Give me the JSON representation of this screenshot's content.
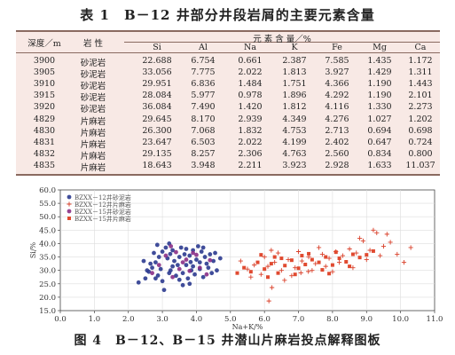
{
  "table": {
    "title": "表 1　B－12 井部分井段岩屑的主要元素含量",
    "header_depth": "深度／m",
    "header_rock": "岩 性",
    "header_group": "元 素 含 量／%",
    "elements": [
      "Si",
      "Al",
      "Na",
      "K",
      "Fe",
      "Mg",
      "Ca"
    ],
    "rows": [
      {
        "depth": "3900",
        "rock": "砂泥岩",
        "values": [
          "22.688",
          "6.754",
          "0.661",
          "2.387",
          "7.585",
          "1.435",
          "1.172"
        ]
      },
      {
        "depth": "3905",
        "rock": "砂泥岩",
        "values": [
          "33.056",
          "7.775",
          "2.022",
          "1.813",
          "3.927",
          "1.429",
          "1.311"
        ]
      },
      {
        "depth": "3910",
        "rock": "砂泥岩",
        "values": [
          "29.951",
          "6.836",
          "1.484",
          "1.751",
          "4.366",
          "1.190",
          "1.443"
        ]
      },
      {
        "depth": "3915",
        "rock": "砂泥岩",
        "values": [
          "28.084",
          "5.977",
          "0.978",
          "1.896",
          "4.292",
          "1.190",
          "2.101"
        ]
      },
      {
        "depth": "3920",
        "rock": "砂泥岩",
        "values": [
          "36.084",
          "7.490",
          "1.420",
          "1.812",
          "4.116",
          "1.330",
          "2.273"
        ]
      },
      {
        "depth": "4829",
        "rock": "片麻岩",
        "values": [
          "29.645",
          "8.170",
          "2.939",
          "4.349",
          "4.276",
          "1.027",
          "1.202"
        ]
      },
      {
        "depth": "4830",
        "rock": "片麻岩",
        "values": [
          "26.300",
          "7.068",
          "1.832",
          "4.753",
          "2.713",
          "0.694",
          "0.698"
        ]
      },
      {
        "depth": "4831",
        "rock": "片麻岩",
        "values": [
          "23.647",
          "6.503",
          "2.022",
          "4.199",
          "2.402",
          "0.647",
          "0.724"
        ]
      },
      {
        "depth": "4832",
        "rock": "片麻岩",
        "values": [
          "29.135",
          "8.257",
          "2.306",
          "4.763",
          "2.560",
          "0.834",
          "0.800"
        ]
      },
      {
        "depth": "4835",
        "rock": "片麻岩",
        "values": [
          "18.643",
          "3.948",
          "2.211",
          "3.923",
          "2.928",
          "1.633",
          "11.037"
        ]
      }
    ]
  },
  "figure_caption": "图 4　B－12、B－15 井潜山片麻岩投点解释图板",
  "colors": {
    "sandstone": "#2b3a8f",
    "gneiss": "#d9402a",
    "table_bg": "#f8e9e5"
  },
  "chart_data": {
    "type": "scatter",
    "xlabel": "Na+K/%",
    "ylabel": "Si/%",
    "xlim": [
      0.0,
      11.0
    ],
    "ylim": [
      15.0,
      60.0
    ],
    "xticks": [
      "0.0",
      "1.0",
      "2.0",
      "3.0",
      "4.0",
      "5.0",
      "6.0",
      "7.0",
      "8.0",
      "9.0",
      "10.0",
      "11.0"
    ],
    "yticks": [
      "15.0",
      "20.0",
      "25.0",
      "30.0",
      "35.0",
      "40.0",
      "45.0",
      "50.0",
      "55.0",
      "60.0"
    ],
    "legend_position": "top-left",
    "grid": true,
    "series": [
      {
        "name": "BZXX－12井砂泥岩",
        "marker": "circle",
        "color": "#2b3a8f",
        "points": [
          [
            3.05,
            22.7
          ],
          [
            3.83,
            33.1
          ],
          [
            3.24,
            30.0
          ],
          [
            2.87,
            28.1
          ],
          [
            3.23,
            36.1
          ],
          [
            2.3,
            25.5
          ],
          [
            2.5,
            27.0
          ],
          [
            2.6,
            29.5
          ],
          [
            2.7,
            31.0
          ],
          [
            2.8,
            33.0
          ],
          [
            2.9,
            35.0
          ],
          [
            3.0,
            37.0
          ],
          [
            3.1,
            38.5
          ],
          [
            3.2,
            40.0
          ],
          [
            3.3,
            31.5
          ],
          [
            3.4,
            28.0
          ],
          [
            3.5,
            26.5
          ],
          [
            3.6,
            29.0
          ],
          [
            3.7,
            32.0
          ],
          [
            3.8,
            35.5
          ],
          [
            3.9,
            37.5
          ],
          [
            4.0,
            34.0
          ],
          [
            4.1,
            30.5
          ],
          [
            4.2,
            27.5
          ],
          [
            4.3,
            32.5
          ],
          [
            4.4,
            36.0
          ],
          [
            4.5,
            33.5
          ],
          [
            4.6,
            30.0
          ],
          [
            2.75,
            36.5
          ],
          [
            3.15,
            34.5
          ],
          [
            3.45,
            32.0
          ],
          [
            3.65,
            36.0
          ],
          [
            3.95,
            28.5
          ],
          [
            4.25,
            35.0
          ],
          [
            2.65,
            32.5
          ],
          [
            3.55,
            38.5
          ],
          [
            3.85,
            30.0
          ],
          [
            4.15,
            37.0
          ],
          [
            4.45,
            29.0
          ],
          [
            2.95,
            30.5
          ],
          [
            3.35,
            33.5
          ],
          [
            3.75,
            27.0
          ],
          [
            4.05,
            39.0
          ],
          [
            2.55,
            30.0
          ],
          [
            3.5,
            35.0
          ],
          [
            4.35,
            31.0
          ],
          [
            3.0,
            26.0
          ],
          [
            3.6,
            24.5
          ],
          [
            4.7,
            34.5
          ],
          [
            2.85,
            39.5
          ],
          [
            3.7,
            38.0
          ],
          [
            4.1,
            33.0
          ],
          [
            3.3,
            37.5
          ],
          [
            3.9,
            31.5
          ],
          [
            2.45,
            33.5
          ],
          [
            4.55,
            36.5
          ],
          [
            3.2,
            29.0
          ],
          [
            3.8,
            25.0
          ],
          [
            4.2,
            38.5
          ],
          [
            2.8,
            27.0
          ]
        ]
      },
      {
        "name": "BZXX－12井片麻岩",
        "marker": "plus",
        "color": "#d9402a",
        "points": [
          [
            7.29,
            29.6
          ],
          [
            6.59,
            26.3
          ],
          [
            6.22,
            23.6
          ],
          [
            7.07,
            29.1
          ],
          [
            6.13,
            18.6
          ],
          [
            5.5,
            30.5
          ],
          [
            5.7,
            32.0
          ],
          [
            5.9,
            28.5
          ],
          [
            6.1,
            31.5
          ],
          [
            6.3,
            33.0
          ],
          [
            6.5,
            30.0
          ],
          [
            6.7,
            34.0
          ],
          [
            6.9,
            31.0
          ],
          [
            7.1,
            33.5
          ],
          [
            7.3,
            35.0
          ],
          [
            7.5,
            32.5
          ],
          [
            7.7,
            36.0
          ],
          [
            7.9,
            34.5
          ],
          [
            8.1,
            37.0
          ],
          [
            8.3,
            35.5
          ],
          [
            8.5,
            38.0
          ],
          [
            8.7,
            36.5
          ],
          [
            8.9,
            41.0
          ],
          [
            9.1,
            37.5
          ],
          [
            9.3,
            44.0
          ],
          [
            9.5,
            39.0
          ],
          [
            9.7,
            40.5
          ],
          [
            9.9,
            36.0
          ],
          [
            10.1,
            33.0
          ],
          [
            10.3,
            38.5
          ],
          [
            6.0,
            35.0
          ],
          [
            6.4,
            36.5
          ],
          [
            7.0,
            37.0
          ],
          [
            7.4,
            30.0
          ],
          [
            7.8,
            31.5
          ],
          [
            8.2,
            33.0
          ],
          [
            8.6,
            31.0
          ],
          [
            9.0,
            34.0
          ],
          [
            9.4,
            35.5
          ],
          [
            5.3,
            33.5
          ],
          [
            5.6,
            27.5
          ],
          [
            6.8,
            28.0
          ],
          [
            8.0,
            29.5
          ],
          [
            8.8,
            42.0
          ],
          [
            9.2,
            45.0
          ],
          [
            9.6,
            43.5
          ],
          [
            7.6,
            38.5
          ],
          [
            6.2,
            37.5
          ]
        ]
      },
      {
        "name": "BZXX－15井砂泥岩",
        "marker": "circle",
        "color": "#8a2f86",
        "points": [
          [
            2.9,
            32.0
          ],
          [
            3.1,
            35.5
          ],
          [
            3.3,
            27.5
          ],
          [
            3.5,
            30.5
          ],
          [
            3.7,
            34.0
          ],
          [
            3.9,
            36.5
          ],
          [
            4.1,
            31.0
          ],
          [
            4.3,
            28.5
          ],
          [
            2.7,
            29.0
          ],
          [
            3.25,
            39.0
          ],
          [
            3.6,
            33.0
          ],
          [
            4.0,
            35.8
          ],
          [
            4.4,
            33.8
          ],
          [
            3.4,
            36.8
          ],
          [
            3.8,
            29.8
          ]
        ]
      },
      {
        "name": "BZXX－15井片麻岩",
        "marker": "square",
        "color": "#e04a30",
        "points": [
          [
            5.4,
            31.0
          ],
          [
            5.6,
            29.5
          ],
          [
            5.8,
            33.0
          ],
          [
            6.0,
            30.5
          ],
          [
            6.2,
            32.5
          ],
          [
            6.4,
            29.0
          ],
          [
            6.6,
            31.8
          ],
          [
            6.8,
            33.8
          ],
          [
            7.0,
            30.8
          ],
          [
            7.2,
            32.2
          ],
          [
            7.4,
            34.0
          ],
          [
            7.6,
            33.0
          ],
          [
            7.8,
            35.0
          ],
          [
            8.0,
            32.0
          ],
          [
            8.2,
            34.5
          ],
          [
            8.4,
            33.2
          ],
          [
            8.6,
            36.0
          ],
          [
            8.8,
            34.8
          ],
          [
            9.0,
            35.8
          ],
          [
            9.2,
            37.2
          ],
          [
            6.1,
            27.5
          ],
          [
            6.5,
            34.5
          ],
          [
            6.9,
            28.5
          ],
          [
            7.3,
            36.2
          ],
          [
            7.7,
            30.2
          ],
          [
            8.1,
            36.8
          ],
          [
            5.9,
            35.8
          ],
          [
            5.2,
            29.0
          ],
          [
            6.3,
            35.0
          ],
          [
            7.9,
            28.8
          ],
          [
            8.5,
            31.5
          ],
          [
            7.1,
            35.5
          ]
        ]
      }
    ]
  }
}
